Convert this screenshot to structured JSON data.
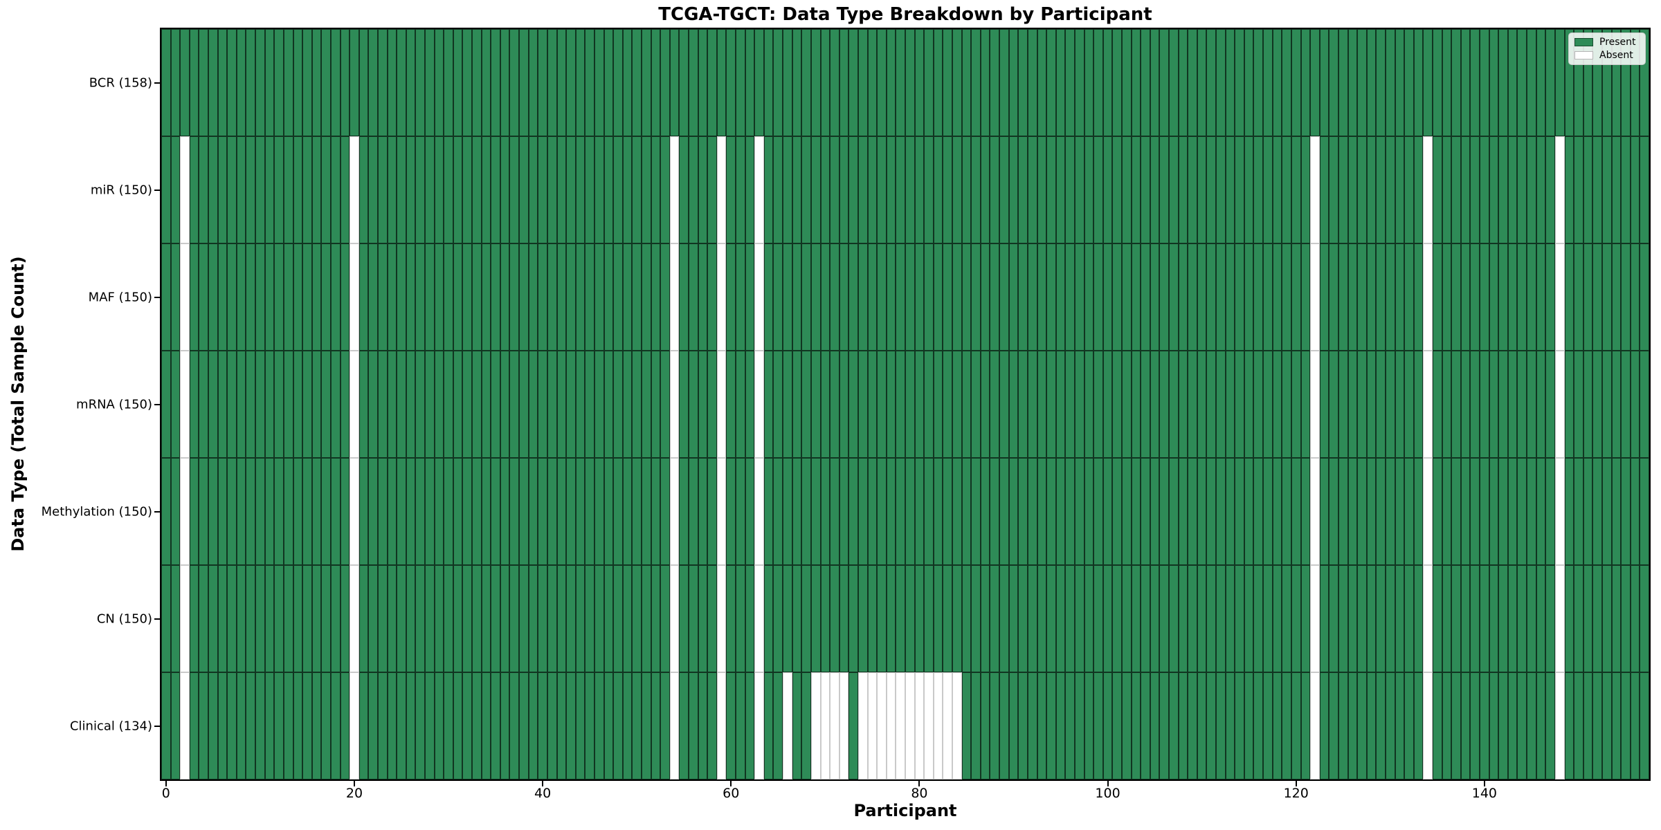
{
  "title": "TCGA-TGCT: Data Type Breakdown by Participant",
  "xlabel": "Participant",
  "ylabel": "Data Type (Total Sample Count)",
  "legend": [
    {
      "label": "Present",
      "color": "#2e8b57"
    },
    {
      "label": "Absent",
      "color": "#ffffff"
    }
  ],
  "colors": {
    "present": "#2e8b57",
    "absent": "#ffffff",
    "present_cell_border": "rgba(0,0,0,0.62)",
    "absent_cell_border": "#c9c9c9",
    "spine": "#000000"
  },
  "chart_data": {
    "type": "heatmap",
    "title": "TCGA-TGCT: Data Type Breakdown by Participant",
    "xlabel": "Participant",
    "ylabel": "Data Type (Total Sample Count)",
    "n_participants": 158,
    "x_range": [
      0,
      157
    ],
    "x_ticks": [
      0,
      20,
      40,
      60,
      80,
      100,
      120,
      140
    ],
    "legend_entries": [
      "Present",
      "Absent"
    ],
    "legend_position": "upper right",
    "grid": false,
    "rows": [
      {
        "label": "BCR (158)",
        "data_type": "BCR",
        "total_samples": 158,
        "absent_participants": []
      },
      {
        "label": "miR (150)",
        "data_type": "miR",
        "total_samples": 150,
        "absent_participants": [
          2,
          20,
          54,
          59,
          63,
          122,
          134,
          148
        ]
      },
      {
        "label": "MAF (150)",
        "data_type": "MAF",
        "total_samples": 150,
        "absent_participants": [
          2,
          20,
          54,
          59,
          63,
          122,
          134,
          148
        ]
      },
      {
        "label": "mRNA (150)",
        "data_type": "mRNA",
        "total_samples": 150,
        "absent_participants": [
          2,
          20,
          54,
          59,
          63,
          122,
          134,
          148
        ]
      },
      {
        "label": "Methylation (150)",
        "data_type": "Methylation",
        "total_samples": 150,
        "absent_participants": [
          2,
          20,
          54,
          59,
          63,
          122,
          134,
          148
        ]
      },
      {
        "label": "CN (150)",
        "data_type": "CN",
        "total_samples": 150,
        "absent_participants": [
          2,
          20,
          54,
          59,
          63,
          122,
          134,
          148
        ]
      },
      {
        "label": "Clinical (134)",
        "data_type": "Clinical",
        "total_samples": 134,
        "absent_participants": [
          2,
          20,
          54,
          59,
          63,
          66,
          69,
          70,
          71,
          72,
          74,
          75,
          76,
          77,
          78,
          79,
          80,
          81,
          82,
          83,
          84,
          122,
          134,
          148
        ]
      }
    ]
  }
}
